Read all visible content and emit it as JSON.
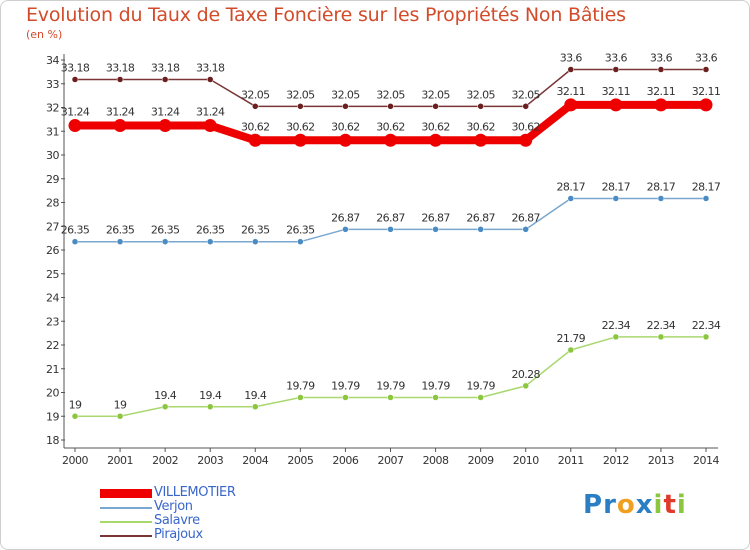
{
  "title": "Evolution du Taux de Taxe Foncière sur les Propriétés Non Bâties",
  "unit_label": "(en %)",
  "logo": {
    "letters": [
      {
        "ch": "P",
        "color": "#2a7fc4"
      },
      {
        "ch": "r",
        "color": "#2a7fc4"
      },
      {
        "ch": "o",
        "color": "#f0a020"
      },
      {
        "ch": "x",
        "color": "#2a7fc4"
      },
      {
        "ch": "i",
        "color": "#8cc63f"
      },
      {
        "ch": "t",
        "color": "#e03a2a"
      },
      {
        "ch": "i",
        "color": "#8cc63f"
      }
    ]
  },
  "chart_data": {
    "type": "line",
    "title": "Evolution du Taux de Taxe Foncière sur les Propriétés Non Bâties",
    "ylabel": "(en %)",
    "xlabel": "",
    "ylim": [
      18,
      34
    ],
    "yticks": [
      "18",
      "19",
      "20",
      "21",
      "22",
      "23",
      "24",
      "25",
      "26",
      "27",
      "28",
      "29",
      "30",
      "31",
      "32",
      "33",
      "34"
    ],
    "x": [
      "2000",
      "2001",
      "2002",
      "2003",
      "2004",
      "2005",
      "2006",
      "2007",
      "2008",
      "2009",
      "2010",
      "2011",
      "2012",
      "2013",
      "2014"
    ],
    "grid": false,
    "legend_position": "bottom-left",
    "series": [
      {
        "name": "Pirajoux",
        "color": "#7a3535",
        "marker_color": "#6b1f1f",
        "emphasis": false,
        "label_position": "above",
        "values": [
          33.18,
          33.18,
          33.18,
          33.18,
          32.05,
          32.05,
          32.05,
          32.05,
          32.05,
          32.05,
          32.05,
          33.6,
          33.6,
          33.6,
          33.6
        ],
        "labels": [
          "33.18",
          "33.18",
          "33.18",
          "33.18",
          "32.05",
          "32.05",
          "32.05",
          "32.05",
          "32.05",
          "32.05",
          "32.05",
          "33.6",
          "33.6",
          "33.6",
          "33.6"
        ]
      },
      {
        "name": "Verjon",
        "color": "#7aa7cf",
        "marker_color": "#4a8bc4",
        "emphasis": false,
        "label_position": "above",
        "values": [
          26.35,
          26.35,
          26.35,
          26.35,
          26.35,
          26.35,
          26.87,
          26.87,
          26.87,
          26.87,
          26.87,
          28.17,
          28.17,
          28.17,
          28.17
        ],
        "labels": [
          "26.35",
          "26.35",
          "26.35",
          "26.35",
          "26.35",
          "26.35",
          "26.87",
          "26.87",
          "26.87",
          "26.87",
          "26.87",
          "28.17",
          "28.17",
          "28.17",
          "28.17"
        ]
      },
      {
        "name": "Salavre",
        "color": "#a9d86e",
        "marker_color": "#8cc63f",
        "emphasis": false,
        "label_position": "above",
        "values": [
          19,
          19,
          19.4,
          19.4,
          19.4,
          19.79,
          19.79,
          19.79,
          19.79,
          19.79,
          20.28,
          21.79,
          22.34,
          22.34,
          22.34
        ],
        "labels": [
          "19",
          "19",
          "19.4",
          "19.4",
          "19.4",
          "19.79",
          "19.79",
          "19.79",
          "19.79",
          "19.79",
          "20.28",
          "21.79",
          "22.34",
          "22.34",
          "22.34"
        ]
      },
      {
        "name": "VILLEMOTIER",
        "color": "#ee0000",
        "marker_color": "#ee0000",
        "emphasis": true,
        "label_position": "above",
        "values": [
          31.24,
          31.24,
          31.24,
          31.24,
          30.62,
          30.62,
          30.62,
          30.62,
          30.62,
          30.62,
          30.62,
          32.11,
          32.11,
          32.11,
          32.11
        ],
        "labels": [
          "31.24",
          "31.24",
          "31.24",
          "31.24",
          "30.62",
          "30.62",
          "30.62",
          "30.62",
          "30.62",
          "30.62",
          "30.62",
          "32.11",
          "32.11",
          "32.11",
          "32.11"
        ]
      }
    ],
    "legend": [
      {
        "name": "VILLEMOTIER",
        "color": "#ee0000",
        "text_color": "#3a66cc",
        "emphasis": true
      },
      {
        "name": "Verjon",
        "color": "#7aa7cf",
        "text_color": "#3a66cc",
        "emphasis": false
      },
      {
        "name": "Salavre",
        "color": "#a9d86e",
        "text_color": "#3a66cc",
        "emphasis": false
      },
      {
        "name": "Pirajoux",
        "color": "#7a3535",
        "text_color": "#3a66cc",
        "emphasis": false
      }
    ]
  }
}
